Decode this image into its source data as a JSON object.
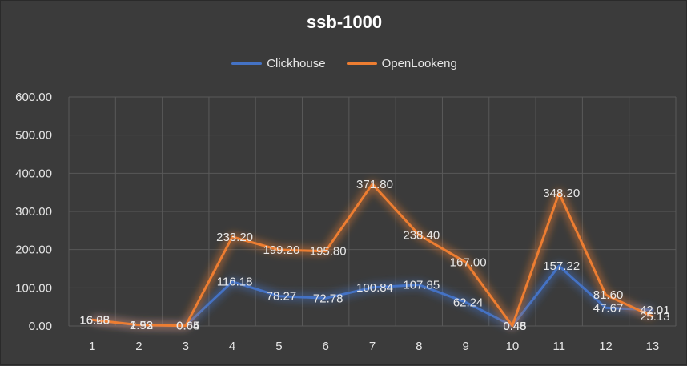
{
  "chart_data": {
    "type": "line",
    "title": "ssb-1000",
    "xlabel": "",
    "ylabel": "",
    "categories": [
      "1",
      "2",
      "3",
      "4",
      "5",
      "6",
      "7",
      "8",
      "9",
      "10",
      "11",
      "12",
      "13"
    ],
    "ylim": [
      0,
      600
    ],
    "y_ticks": [
      "0.00",
      "100.00",
      "200.00",
      "300.00",
      "400.00",
      "500.00",
      "600.00"
    ],
    "grid": true,
    "legend_position": "top",
    "series": [
      {
        "name": "Clickhouse",
        "color": "#4472c4",
        "values": [
          16.08,
          1.93,
          0.64,
          116.18,
          78.27,
          72.78,
          100.84,
          107.85,
          62.24,
          0.45,
          157.22,
          47.67,
          42.01
        ],
        "labels": [
          "16.08",
          "1.93",
          "0.64",
          "116.18",
          "78.27",
          "72.78",
          "100.84",
          "107.85",
          "62.24",
          "0.45",
          "157.22",
          "47.67",
          "42.01"
        ]
      },
      {
        "name": "OpenLookeng",
        "color": "#ed7d31",
        "values": [
          16.25,
          2.52,
          0.65,
          233.2,
          199.2,
          195.8,
          371.8,
          238.4,
          167.0,
          0.48,
          348.2,
          81.6,
          25.13
        ],
        "labels": [
          "16.25",
          "2.52",
          "0.65",
          "233.20",
          "199.20",
          "195.80",
          "371.80",
          "238.40",
          "167.00",
          "0.48",
          "348.20",
          "81.60",
          "25.13"
        ]
      }
    ]
  }
}
